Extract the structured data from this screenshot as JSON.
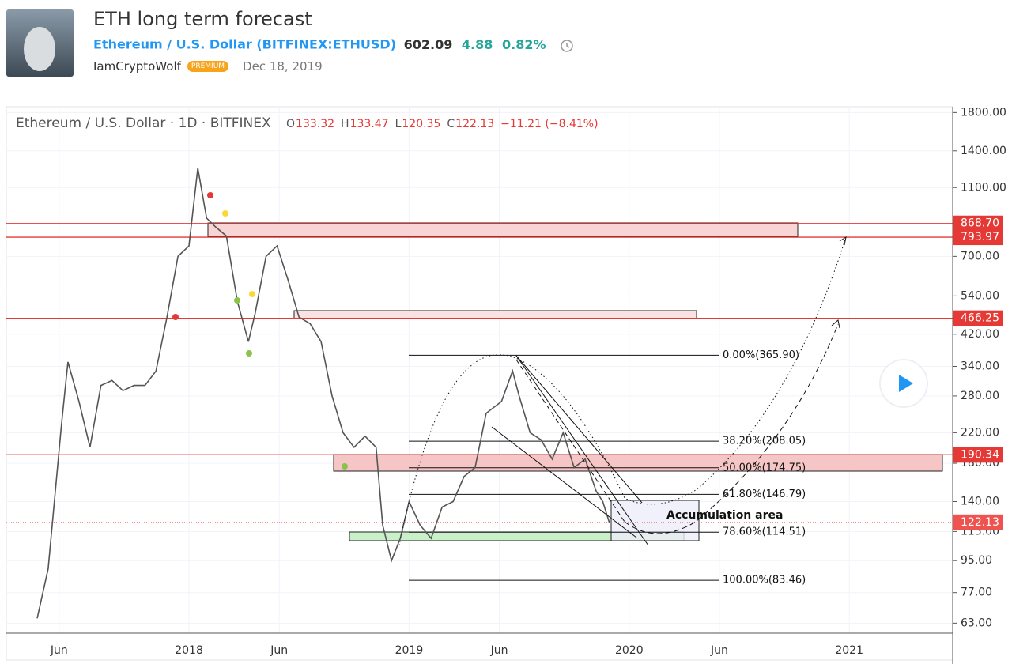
{
  "header": {
    "title": "ETH long term forecast",
    "symbol_name": "Ethereum / U.S. Dollar",
    "symbol": "(BITFINEX:ETHUSD)",
    "price": "602.09",
    "change": "4.88",
    "change_pct": "0.82%",
    "author": "IamCryptoWolf",
    "badge": "PREMIUM",
    "date": "Dec 18, 2019"
  },
  "chart_data": {
    "type": "line",
    "title": "Ethereum / U.S. Dollar · 1D · BITFINEX",
    "ohlc": [
      {
        "key": "O",
        "value": "133.32"
      },
      {
        "key": "H",
        "value": "133.47"
      },
      {
        "key": "L",
        "value": "120.35"
      },
      {
        "key": "C",
        "value": "122.13"
      }
    ],
    "change": "−11.21 (−8.41%)",
    "log_scale": true,
    "grid": true,
    "color": "#555555",
    "x": [
      2017.31,
      2017.36,
      2017.42,
      2017.45,
      2017.5,
      2017.55,
      2017.6,
      2017.65,
      2017.7,
      2017.75,
      2017.8,
      2017.85,
      2017.9,
      2017.95,
      2018.0,
      2018.04,
      2018.08,
      2018.12,
      2018.17,
      2018.22,
      2018.27,
      2018.3,
      2018.35,
      2018.4,
      2018.45,
      2018.5,
      2018.55,
      2018.6,
      2018.65,
      2018.7,
      2018.75,
      2018.8,
      2018.85,
      2018.88,
      2018.92,
      2018.96,
      2019.0,
      2019.05,
      2019.1,
      2019.15,
      2019.2,
      2019.25,
      2019.3,
      2019.35,
      2019.42,
      2019.47,
      2019.5,
      2019.55,
      2019.6,
      2019.65,
      2019.7,
      2019.75,
      2019.8,
      2019.85,
      2019.88,
      2019.91
    ],
    "values": [
      65,
      90,
      230,
      350,
      270,
      200,
      300,
      310,
      290,
      300,
      300,
      330,
      470,
      700,
      750,
      1250,
      900,
      850,
      800,
      520,
      400,
      480,
      700,
      750,
      600,
      470,
      450,
      400,
      280,
      220,
      200,
      215,
      200,
      120,
      95,
      110,
      140,
      120,
      110,
      135,
      140,
      165,
      175,
      250,
      270,
      330,
      280,
      220,
      210,
      185,
      220,
      175,
      185,
      150,
      140,
      122
    ],
    "xlim": [
      2017.17,
      2021.47
    ],
    "xticks": [
      {
        "value": 2017.41,
        "label": "Jun"
      },
      {
        "value": 2018.0,
        "label": "2018"
      },
      {
        "value": 2018.41,
        "label": "Jun"
      },
      {
        "value": 2019.0,
        "label": "2019"
      },
      {
        "value": 2019.41,
        "label": "Jun"
      },
      {
        "value": 2020.0,
        "label": "2020"
      },
      {
        "value": 2020.41,
        "label": "Jun"
      },
      {
        "value": 2021.0,
        "label": "2021"
      }
    ],
    "ylim": [
      59,
      1870
    ],
    "yticks": [
      {
        "value": 1800,
        "label": "1800.00"
      },
      {
        "value": 1400,
        "label": "1400.00"
      },
      {
        "value": 1100,
        "label": "1100.00"
      },
      {
        "value": 700,
        "label": "700.00"
      },
      {
        "value": 540,
        "label": "540.00"
      },
      {
        "value": 420,
        "label": "420.00"
      },
      {
        "value": 340,
        "label": "340.00"
      },
      {
        "value": 280,
        "label": "280.00"
      },
      {
        "value": 220,
        "label": "220.00"
      },
      {
        "value": 180,
        "label": "180.00"
      },
      {
        "value": 140,
        "label": "140.00"
      },
      {
        "value": 115,
        "label": "115.00"
      },
      {
        "value": 95,
        "label": "95.00"
      },
      {
        "value": 77,
        "label": "77.00"
      },
      {
        "value": 63,
        "label": "63.00"
      }
    ],
    "levels": [
      {
        "value": 868.7,
        "label": "868.70"
      },
      {
        "value": 793.97,
        "label": "793.97"
      },
      {
        "value": 466.25,
        "label": "466.25"
      },
      {
        "value": 190.34,
        "label": "190.34"
      }
    ],
    "last_price": {
      "value": 122.13,
      "label": "122.13"
    },
    "fib": [
      {
        "value": 365.9,
        "label": "0.00%(365.90)"
      },
      {
        "value": 208.05,
        "label": "38.20%(208.05)"
      },
      {
        "value": 174.75,
        "label": "50.00%(174.75)"
      },
      {
        "value": 146.79,
        "label": "61.80%(146.79)"
      },
      {
        "value": 114.51,
        "label": "78.60%(114.51)"
      },
      {
        "value": 83.46,
        "label": "100.00%(83.46)"
      }
    ],
    "annotation": "Accumulation area"
  }
}
